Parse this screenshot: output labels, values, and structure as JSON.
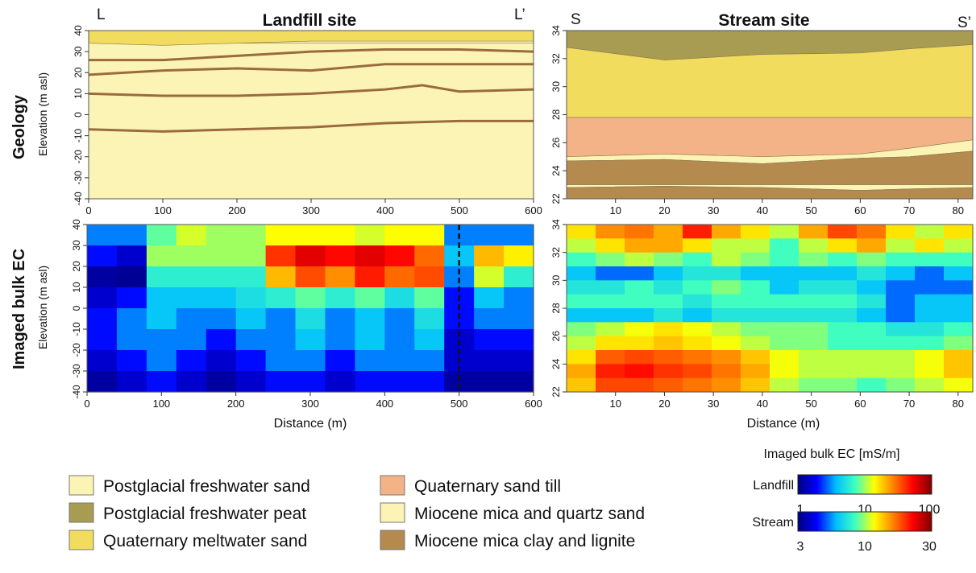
{
  "row_labels": {
    "geology": "Geology",
    "ec": "Imaged bulk EC"
  },
  "landfill": {
    "title": "Landfill site",
    "start_label": "L",
    "end_label": "L’",
    "ylabel": "Elevation (m asl)",
    "xlabel": "Distance (m)",
    "xticks": [
      "0",
      "100",
      "200",
      "300",
      "400",
      "500",
      "600"
    ],
    "yticks": [
      "40",
      "30",
      "20",
      "10",
      "0",
      "-10",
      "-20",
      "-30",
      "-40"
    ]
  },
  "stream": {
    "title": "Stream site",
    "start_label": "S",
    "end_label": "S’",
    "xlabel": "Distance (m)",
    "xticks": [
      "10",
      "20",
      "30",
      "40",
      "50",
      "60",
      "70",
      "80"
    ],
    "yticks": [
      "34",
      "32",
      "30",
      "28",
      "26",
      "24",
      "22"
    ]
  },
  "legend": {
    "items": [
      {
        "label": "Postglacial freshwater sand",
        "color": "#fbf4b4"
      },
      {
        "label": "Postglacial freshwater peat",
        "color": "#a89b52"
      },
      {
        "label": "Quaternary meltwater sand",
        "color": "#f1dc5e"
      },
      {
        "label": "Quaternary sand till",
        "color": "#f4b386"
      },
      {
        "label": "Miocene mica and quartz sand",
        "color": "#fbf4b4"
      },
      {
        "label": "Miocene mica clay and lignite",
        "color": "#b48a4f"
      }
    ]
  },
  "colorbar": {
    "title": "Imaged bulk EC [mS/m]",
    "landfill_label": "Landfill",
    "landfill_ticks": [
      "1",
      "10",
      "100"
    ],
    "stream_label": "Stream",
    "stream_ticks": [
      "3",
      "10",
      "30"
    ],
    "colormap": [
      "#00007f",
      "#0000ff",
      "#00bfff",
      "#40ffbf",
      "#ffff00",
      "#ff8000",
      "#ff0000",
      "#7f0000"
    ]
  },
  "chart_data": [
    {
      "type": "area",
      "panel": "landfill-geology",
      "xlim": [
        0,
        600
      ],
      "ylim": [
        -40,
        40
      ],
      "layers": [
        {
          "unit": "Postglacial freshwater sand",
          "x": [
            0,
            600
          ],
          "top": [
            40,
            40
          ],
          "bottom": [
            34,
            34
          ]
        },
        {
          "unit": "Quaternary meltwater sand",
          "x": [
            0,
            100,
            200,
            300,
            400,
            500,
            600
          ],
          "top": [
            40,
            40,
            40,
            40,
            40,
            40,
            40
          ],
          "bottom": [
            34,
            33,
            34,
            35,
            35,
            35,
            35
          ]
        }
      ],
      "boundaries": [
        {
          "x": [
            0,
            100,
            200,
            300,
            400,
            500,
            600
          ],
          "y": [
            26,
            26,
            28,
            30,
            31,
            31,
            30
          ]
        },
        {
          "x": [
            0,
            100,
            200,
            300,
            400,
            500,
            600
          ],
          "y": [
            19,
            21,
            22,
            21,
            24,
            24,
            24
          ]
        },
        {
          "x": [
            0,
            100,
            200,
            300,
            400,
            450,
            500,
            600
          ],
          "y": [
            10,
            9,
            9,
            10,
            12,
            14,
            11,
            12
          ]
        },
        {
          "x": [
            0,
            100,
            200,
            300,
            400,
            500,
            600
          ],
          "y": [
            -7,
            -8,
            -7,
            -6,
            -4,
            -3,
            -3
          ]
        }
      ]
    },
    {
      "type": "area",
      "panel": "stream-geology",
      "xlim": [
        0,
        83
      ],
      "ylim": [
        22,
        34
      ],
      "layers": [
        {
          "unit": "Postglacial freshwater peat",
          "x": [
            0,
            20,
            40,
            60,
            70,
            83
          ],
          "top": [
            34,
            34,
            34,
            34,
            34,
            34
          ],
          "bottom": [
            32.8,
            31.9,
            32.3,
            32.4,
            32.7,
            33.0
          ]
        },
        {
          "unit": "Quaternary meltwater sand",
          "x": [
            0,
            20,
            40,
            60,
            70,
            83
          ],
          "top": [
            32.8,
            31.9,
            32.3,
            32.4,
            32.7,
            33.0
          ],
          "bottom": [
            27.8,
            27.8,
            27.8,
            27.8,
            27.8,
            27.8
          ]
        },
        {
          "unit": "Quaternary sand till",
          "x": [
            0,
            20,
            40,
            60,
            70,
            83
          ],
          "top": [
            27.8,
            27.8,
            27.8,
            27.8,
            27.8,
            27.8
          ],
          "bottom": [
            25.0,
            25.2,
            25.0,
            25.2,
            25.6,
            26.2
          ]
        },
        {
          "unit": "Miocene mica and quartz sand",
          "x": [
            0,
            20,
            40,
            60,
            70,
            83
          ],
          "top": [
            25.0,
            25.2,
            25.0,
            25.2,
            25.6,
            26.2
          ],
          "bottom": [
            24.7,
            24.8,
            24.5,
            24.9,
            25.0,
            25.4
          ]
        },
        {
          "unit": "Miocene mica clay and lignite",
          "x": [
            0,
            20,
            40,
            60,
            70,
            83
          ],
          "top": [
            24.7,
            24.8,
            24.5,
            24.9,
            25.0,
            25.4
          ],
          "bottom": [
            23.0,
            23.0,
            23.0,
            23.0,
            23.0,
            23.0
          ]
        },
        {
          "unit": "Miocene mica and quartz sand",
          "x": [
            0,
            20,
            40,
            60,
            70,
            83
          ],
          "top": [
            23.0,
            23.0,
            23.0,
            23.0,
            23.0,
            23.0
          ],
          "bottom": [
            22.8,
            22.9,
            22.8,
            22.6,
            22.7,
            22.8
          ]
        },
        {
          "unit": "Miocene mica clay and lignite",
          "x": [
            0,
            20,
            40,
            60,
            70,
            83
          ],
          "top": [
            22.8,
            22.9,
            22.8,
            22.6,
            22.7,
            22.8
          ],
          "bottom": [
            22,
            22,
            22,
            22,
            22,
            22
          ]
        }
      ]
    },
    {
      "type": "heatmap",
      "panel": "landfill-ec",
      "xlim": [
        0,
        600
      ],
      "ylim": [
        -40,
        40
      ],
      "unit": "mS/m",
      "scale": "log",
      "x_centers": [
        20,
        60,
        100,
        140,
        180,
        220,
        260,
        300,
        340,
        380,
        420,
        460,
        500,
        540,
        580
      ],
      "y_centers": [
        35,
        25,
        15,
        5,
        -5,
        -15,
        -25,
        -35
      ],
      "values": [
        [
          3,
          3,
          8,
          12,
          10,
          10,
          14,
          14,
          14,
          12,
          14,
          14,
          3,
          3,
          3
        ],
        [
          2,
          1.5,
          10,
          10,
          10,
          10,
          40,
          60,
          50,
          60,
          50,
          30,
          4,
          20,
          15
        ],
        [
          1.2,
          1.1,
          6,
          6,
          6,
          6,
          20,
          35,
          25,
          45,
          30,
          35,
          3,
          12,
          6
        ],
        [
          1.5,
          2,
          4,
          4,
          4,
          5,
          6,
          8,
          6,
          8,
          5,
          8,
          2,
          4,
          3
        ],
        [
          2,
          3,
          4,
          3,
          3,
          4,
          3,
          5,
          3,
          4,
          3,
          5,
          2,
          3,
          3
        ],
        [
          2,
          3,
          3,
          3,
          2,
          3,
          3,
          4,
          3,
          4,
          3,
          4,
          1.5,
          2,
          2
        ],
        [
          1.5,
          2,
          3,
          2,
          1.5,
          2,
          3,
          3,
          2,
          3,
          3,
          3,
          1.5,
          1.5,
          1.5
        ],
        [
          1.2,
          1.5,
          2,
          1.5,
          1.2,
          1.5,
          2,
          2,
          1.5,
          2,
          2,
          2,
          1.2,
          1.2,
          1.2
        ]
      ]
    },
    {
      "type": "heatmap",
      "panel": "stream-ec",
      "xlim": [
        0,
        83
      ],
      "ylim": [
        22,
        34
      ],
      "unit": "mS/m",
      "scale": "log",
      "x_centers": [
        3,
        9,
        15,
        21,
        27,
        33,
        39,
        45,
        51,
        57,
        63,
        69,
        75,
        81
      ],
      "y_centers": [
        33.5,
        32.5,
        31.5,
        30.5,
        29.5,
        28.5,
        27.5,
        26.5,
        25.5,
        24.5,
        23.5,
        22.5
      ],
      "values": [
        [
          12,
          15,
          16,
          14,
          20,
          14,
          12,
          10,
          14,
          18,
          16,
          12,
          10,
          12
        ],
        [
          10,
          12,
          14,
          14,
          12,
          10,
          10,
          8,
          10,
          12,
          14,
          10,
          12,
          10
        ],
        [
          8,
          9,
          10,
          9,
          8,
          10,
          9,
          8,
          9,
          8,
          9,
          8,
          8,
          8
        ],
        [
          6,
          5,
          5,
          6,
          7,
          7,
          6,
          6,
          6,
          6,
          7,
          6,
          5,
          6
        ],
        [
          7,
          7,
          8,
          7,
          8,
          9,
          8,
          6,
          7,
          7,
          6,
          5,
          5,
          5
        ],
        [
          8,
          8,
          8,
          8,
          7,
          8,
          8,
          8,
          8,
          8,
          7,
          5,
          6,
          6
        ],
        [
          6,
          6,
          6,
          7,
          6,
          7,
          7,
          7,
          7,
          7,
          6,
          5,
          6,
          6
        ],
        [
          9,
          10,
          11,
          12,
          11,
          10,
          9,
          9,
          9,
          8,
          8,
          7,
          7,
          8
        ],
        [
          10,
          12,
          12,
          13,
          12,
          11,
          10,
          9,
          9,
          8,
          8,
          8,
          8,
          9
        ],
        [
          12,
          17,
          18,
          17,
          16,
          15,
          13,
          11,
          10,
          10,
          10,
          10,
          11,
          13
        ],
        [
          14,
          20,
          21,
          19,
          18,
          16,
          14,
          11,
          10,
          10,
          10,
          10,
          11,
          13
        ],
        [
          13,
          18,
          18,
          17,
          16,
          15,
          13,
          10,
          9,
          9,
          8,
          9,
          10,
          11
        ]
      ]
    }
  ]
}
